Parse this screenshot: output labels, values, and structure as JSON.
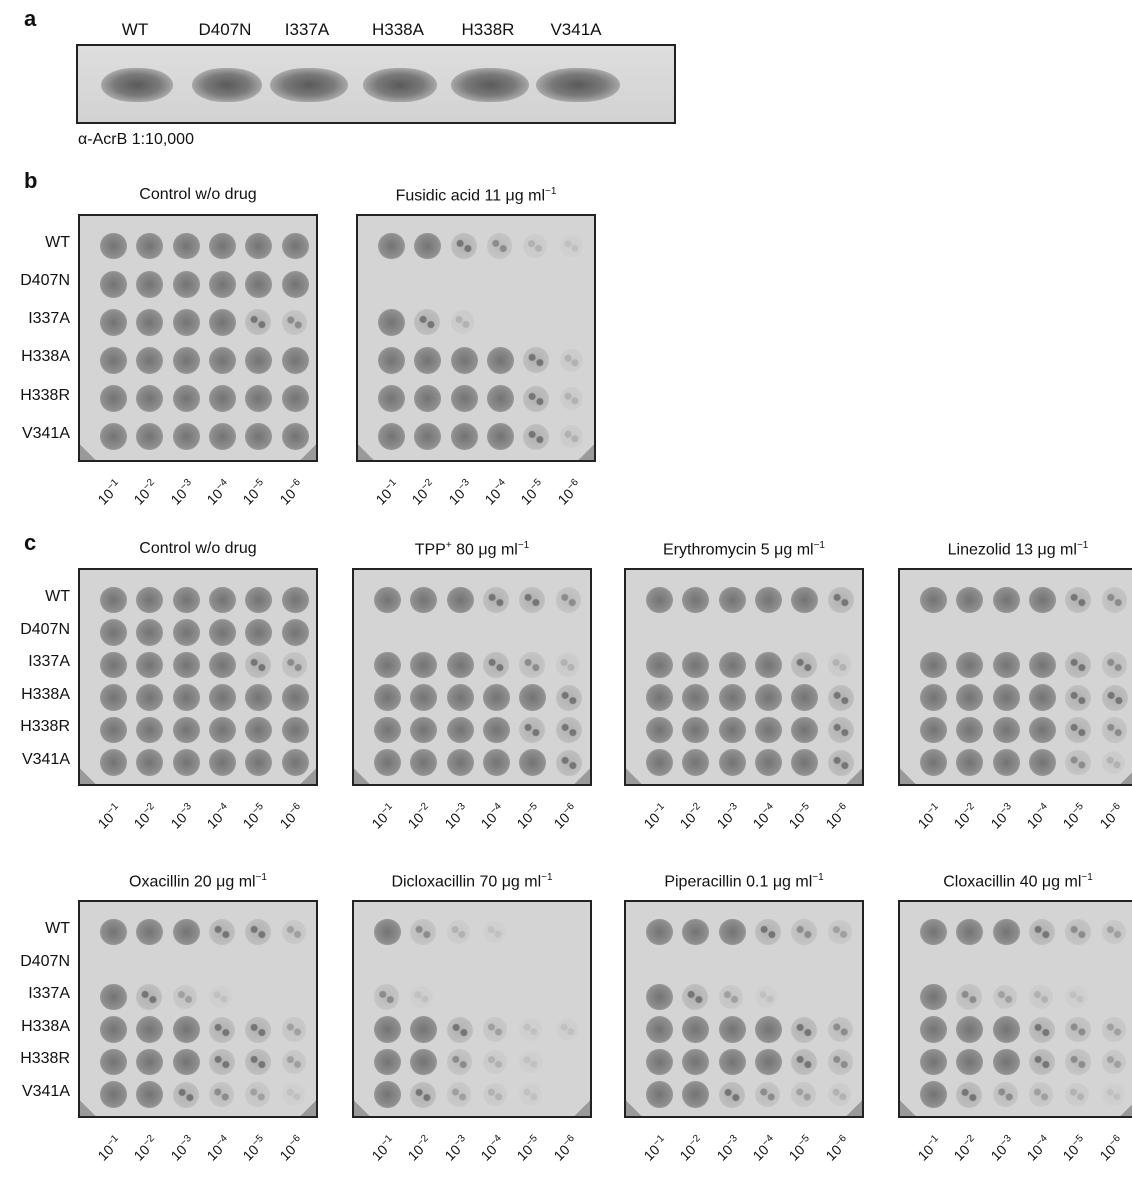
{
  "panel_a": {
    "letter": "a",
    "lanes": [
      "WT",
      "D407N",
      "I337A",
      "H338A",
      "H338R",
      "V341A"
    ],
    "antibody_label": "α-AcrB 1:10,000"
  },
  "panel_b": {
    "letter": "b",
    "rows": [
      "WT",
      "D407N",
      "I337A",
      "H338A",
      "H338R",
      "V341A"
    ],
    "dilutions": [
      "10",
      "10",
      "10",
      "10",
      "10",
      "10"
    ],
    "dilution_exponents": [
      "−1",
      "−2",
      "−3",
      "−4",
      "−5",
      "−6"
    ],
    "plates": [
      {
        "title": "Control w/o drug",
        "unit_sup": ""
      },
      {
        "title": "Fusidic acid 11 μg ml",
        "unit_sup": "−1"
      }
    ]
  },
  "panel_c": {
    "letter": "c",
    "rows": [
      "WT",
      "D407N",
      "I337A",
      "H338A",
      "H338R",
      "V341A"
    ],
    "plates_top": [
      {
        "title": "Control w/o drug",
        "unit_sup": ""
      },
      {
        "title": "TPP",
        "title_sup": "+",
        "title_rest": " 80 μg ml",
        "unit_sup": "−1"
      },
      {
        "title": "Erythromycin 5 μg ml",
        "unit_sup": "−1"
      },
      {
        "title": "Linezolid 13 μg ml",
        "unit_sup": "−1"
      }
    ],
    "plates_bottom": [
      {
        "title": "Oxacillin 20 μg ml",
        "unit_sup": "−1"
      },
      {
        "title": "Dicloxacillin 70 μg ml",
        "unit_sup": "−1"
      },
      {
        "title": "Piperacillin 0.1 μg ml",
        "unit_sup": "−1"
      },
      {
        "title": "Cloxacillin 40 μg ml",
        "unit_sup": "−1"
      }
    ]
  },
  "growth": {
    "control": [
      [
        6,
        6,
        6,
        6,
        6,
        6
      ],
      [
        6,
        6,
        6,
        6,
        6,
        6
      ],
      [
        6,
        6,
        6,
        6,
        5,
        4
      ],
      [
        6,
        6,
        6,
        6,
        6,
        6
      ],
      [
        6,
        6,
        6,
        6,
        6,
        6
      ],
      [
        6,
        6,
        6,
        6,
        6,
        6
      ]
    ],
    "fusidic": [
      [
        6,
        6,
        5,
        4,
        2,
        1
      ],
      [
        0,
        0,
        0,
        0,
        0,
        0
      ],
      [
        6,
        5,
        2,
        0,
        0,
        0
      ],
      [
        6,
        6,
        6,
        6,
        5,
        2
      ],
      [
        6,
        6,
        6,
        6,
        5,
        2
      ],
      [
        6,
        6,
        6,
        6,
        5,
        2
      ]
    ],
    "tpp": [
      [
        6,
        6,
        6,
        5,
        5,
        4
      ],
      [
        0,
        0,
        0,
        0,
        0,
        0
      ],
      [
        6,
        6,
        6,
        5,
        4,
        2
      ],
      [
        6,
        6,
        6,
        6,
        6,
        5
      ],
      [
        6,
        6,
        6,
        6,
        5,
        5
      ],
      [
        6,
        6,
        6,
        6,
        6,
        5
      ]
    ],
    "ery": [
      [
        6,
        6,
        6,
        6,
        6,
        5
      ],
      [
        0,
        0,
        0,
        0,
        0,
        0
      ],
      [
        6,
        6,
        6,
        6,
        5,
        2
      ],
      [
        6,
        6,
        6,
        6,
        6,
        5
      ],
      [
        6,
        6,
        6,
        6,
        6,
        5
      ],
      [
        6,
        6,
        6,
        6,
        6,
        5
      ]
    ],
    "line": [
      [
        6,
        6,
        6,
        6,
        5,
        4
      ],
      [
        0,
        0,
        0,
        0,
        0,
        0
      ],
      [
        6,
        6,
        6,
        6,
        5,
        4
      ],
      [
        6,
        6,
        6,
        6,
        5,
        5
      ],
      [
        6,
        6,
        6,
        6,
        5,
        4
      ],
      [
        6,
        6,
        6,
        6,
        4,
        2
      ]
    ],
    "oxa": [
      [
        6,
        6,
        6,
        5,
        5,
        3
      ],
      [
        0,
        0,
        0,
        0,
        0,
        0
      ],
      [
        6,
        5,
        3,
        1,
        0,
        0
      ],
      [
        6,
        6,
        6,
        5,
        5,
        3
      ],
      [
        6,
        6,
        6,
        5,
        5,
        3
      ],
      [
        6,
        6,
        5,
        4,
        3,
        1
      ]
    ],
    "diclo": [
      [
        6,
        4,
        2,
        1,
        0,
        0
      ],
      [
        0,
        0,
        0,
        0,
        0,
        0
      ],
      [
        4,
        1,
        0,
        0,
        0,
        0
      ],
      [
        6,
        6,
        5,
        3,
        1,
        1
      ],
      [
        6,
        6,
        4,
        2,
        1,
        0
      ],
      [
        6,
        5,
        3,
        2,
        1,
        0
      ]
    ],
    "pipe": [
      [
        6,
        6,
        6,
        5,
        4,
        3
      ],
      [
        0,
        0,
        0,
        0,
        0,
        0
      ],
      [
        6,
        5,
        3,
        1,
        0,
        0
      ],
      [
        6,
        6,
        6,
        6,
        5,
        4
      ],
      [
        6,
        6,
        6,
        6,
        5,
        4
      ],
      [
        6,
        6,
        5,
        4,
        3,
        2
      ]
    ],
    "clox": [
      [
        6,
        6,
        6,
        5,
        4,
        3
      ],
      [
        0,
        0,
        0,
        0,
        0,
        0
      ],
      [
        6,
        4,
        3,
        2,
        1,
        0
      ],
      [
        6,
        6,
        6,
        5,
        4,
        3
      ],
      [
        6,
        6,
        6,
        5,
        4,
        3
      ],
      [
        6,
        5,
        4,
        3,
        2,
        1
      ]
    ]
  },
  "colors": {
    "plate_bg": "#d4d4d4",
    "spot_dark": "#8a8a8a",
    "frame": "#222222"
  }
}
